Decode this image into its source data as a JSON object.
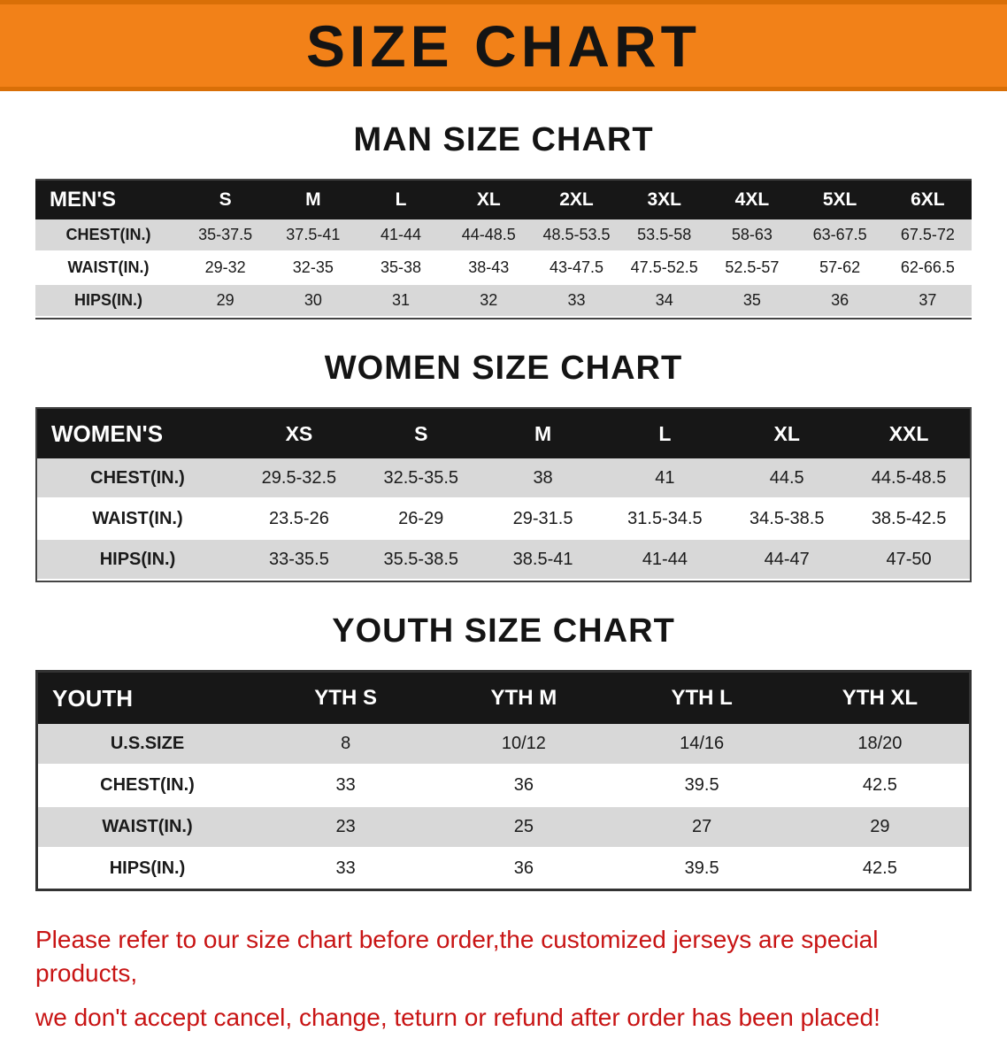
{
  "banner": {
    "title": "SIZE CHART",
    "bg_color": "#f28118",
    "edge_color": "#d96f07",
    "text_color": "#141414"
  },
  "sections": [
    {
      "heading": "MAN SIZE CHART",
      "table": {
        "header": [
          "MEN'S",
          "S",
          "M",
          "L",
          "XL",
          "2XL",
          "3XL",
          "4XL",
          "5XL",
          "6XL"
        ],
        "rows": [
          [
            "CHEST(IN.)",
            "35-37.5",
            "37.5-41",
            "41-44",
            "44-48.5",
            "48.5-53.5",
            "53.5-58",
            "58-63",
            "63-67.5",
            "67.5-72"
          ],
          [
            "WAIST(IN.)",
            "29-32",
            "32-35",
            "35-38",
            "38-43",
            "43-47.5",
            "47.5-52.5",
            "52.5-57",
            "57-62",
            "62-66.5"
          ],
          [
            "HIPS(IN.)",
            "29",
            "30",
            "31",
            "32",
            "33",
            "34",
            "35",
            "36",
            "37"
          ]
        ]
      }
    },
    {
      "heading": "WOMEN SIZE CHART",
      "table": {
        "header": [
          "WOMEN'S",
          "XS",
          "S",
          "M",
          "L",
          "XL",
          "XXL"
        ],
        "rows": [
          [
            "CHEST(IN.)",
            "29.5-32.5",
            "32.5-35.5",
            "38",
            "41",
            "44.5",
            "44.5-48.5"
          ],
          [
            "WAIST(IN.)",
            "23.5-26",
            "26-29",
            "29-31.5",
            "31.5-34.5",
            "34.5-38.5",
            "38.5-42.5"
          ],
          [
            "HIPS(IN.)",
            "33-35.5",
            "35.5-38.5",
            "38.5-41",
            "41-44",
            "44-47",
            "47-50"
          ]
        ]
      }
    },
    {
      "heading": "YOUTH SIZE CHART",
      "table": {
        "header": [
          "YOUTH",
          "YTH S",
          "YTH M",
          "YTH L",
          "YTH XL"
        ],
        "rows": [
          [
            "U.S.SIZE",
            "8",
            "10/12",
            "14/16",
            "18/20"
          ],
          [
            "CHEST(IN.)",
            "33",
            "36",
            "39.5",
            "42.5"
          ],
          [
            "WAIST(IN.)",
            "23",
            "25",
            "27",
            "29"
          ],
          [
            "HIPS(IN.)",
            "33",
            "36",
            "39.5",
            "42.5"
          ]
        ]
      }
    }
  ],
  "footer": {
    "lines": [
      "Please refer to our size chart before order,the customized jerseys are special products,",
      "we don't accept cancel, change, teturn or refund after order has been placed!"
    ],
    "text_color": "#c81414"
  }
}
